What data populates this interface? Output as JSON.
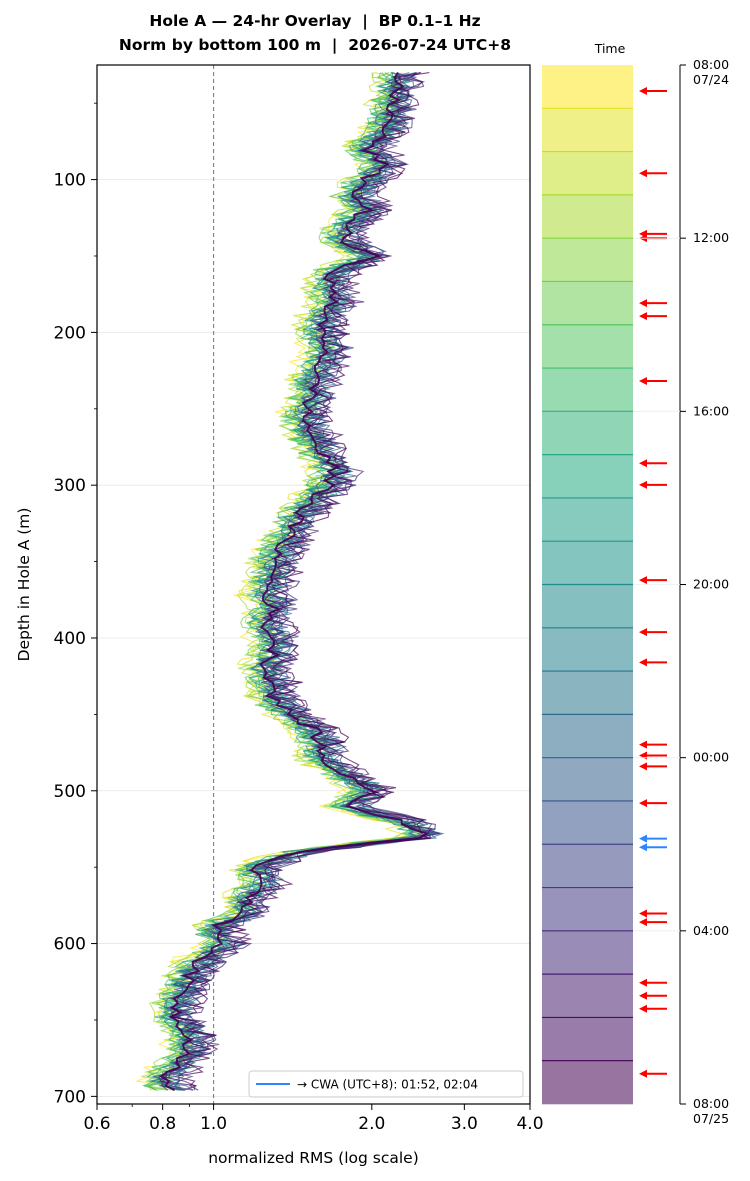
{
  "title_lines": [
    "Hole A — 24-hr Overlay  |  BP 0.1–1 Hz",
    "Norm by bottom 100 m  |  2026-07-24 UTC+8"
  ],
  "chart_data": [
    {
      "type": "line",
      "xscale": "log",
      "xlabel": "normalized RMS  (log scale)",
      "ylabel": "Depth in Hole A (m)",
      "xlim": [
        0.6,
        4.0
      ],
      "ylim": [
        705,
        25
      ],
      "xticks": [
        "0.6",
        "0.8",
        "1.0",
        "2.0",
        "3.0",
        "4.0"
      ],
      "yticks": [
        "100",
        "200",
        "300",
        "400",
        "500",
        "600",
        "700"
      ],
      "reference_line": {
        "x": 1.0,
        "style": "dashed",
        "color": "#808080"
      },
      "n_series": 24,
      "colormap": "viridis (yellow = 08:00 07/24 … dark purple = 07:00 07/25)",
      "series_mean": {
        "depth": [
          30,
          50,
          70,
          80,
          90,
          100,
          110,
          120,
          130,
          140,
          150,
          160,
          170,
          180,
          190,
          200,
          210,
          220,
          230,
          240,
          250,
          260,
          270,
          280,
          290,
          300,
          310,
          320,
          330,
          340,
          350,
          360,
          370,
          380,
          390,
          400,
          410,
          420,
          430,
          440,
          450,
          460,
          470,
          480,
          490,
          500,
          510,
          520,
          530,
          540,
          550,
          560,
          570,
          580,
          590,
          600,
          610,
          620,
          630,
          640,
          650,
          660,
          670,
          680,
          690,
          700
        ],
        "rms": [
          2.25,
          2.2,
          2.1,
          1.95,
          2.1,
          1.95,
          1.85,
          1.95,
          1.8,
          1.75,
          2.0,
          1.7,
          1.65,
          1.7,
          1.6,
          1.6,
          1.65,
          1.6,
          1.55,
          1.55,
          1.5,
          1.5,
          1.55,
          1.6,
          1.7,
          1.65,
          1.55,
          1.45,
          1.4,
          1.35,
          1.3,
          1.3,
          1.25,
          1.3,
          1.25,
          1.3,
          1.3,
          1.25,
          1.3,
          1.3,
          1.4,
          1.55,
          1.6,
          1.6,
          1.8,
          2.0,
          1.8,
          2.3,
          2.55,
          1.45,
          1.2,
          1.25,
          1.15,
          1.15,
          1.0,
          1.05,
          0.95,
          0.9,
          0.88,
          0.85,
          0.85,
          0.9,
          0.9,
          0.85,
          0.8,
          0.85
        ]
      },
      "legend": {
        "entries": [
          "→ CWA (UTC+8): 01:52, 02:04"
        ],
        "location": "lower right",
        "color": "#2e86ff"
      }
    },
    {
      "type": "heatmap",
      "title": "Time",
      "orientation": "vertical colorbar",
      "n_bins": 24,
      "alpha": 0.55,
      "colormap": "viridis",
      "tick_labels": [
        "08:00 07/24",
        "12:00",
        "16:00",
        "20:00",
        "00:00",
        "04:00",
        "08:00 07/25"
      ],
      "time_range": [
        "2026-07-24 08:00",
        "2026-07-25 08:00"
      ],
      "red_arrows_hours": [
        8.6,
        10.5,
        11.9,
        12.0,
        13.5,
        13.8,
        15.3,
        17.2,
        17.7,
        19.9,
        21.1,
        21.8,
        23.7,
        23.95,
        24.2,
        25.05,
        27.6,
        27.8,
        29.2,
        29.5,
        29.8,
        31.3
      ],
      "blue_arrows_hours": [
        25.87,
        26.07
      ],
      "red_color": "#ff0000",
      "blue_color": "#2e86ff"
    }
  ]
}
